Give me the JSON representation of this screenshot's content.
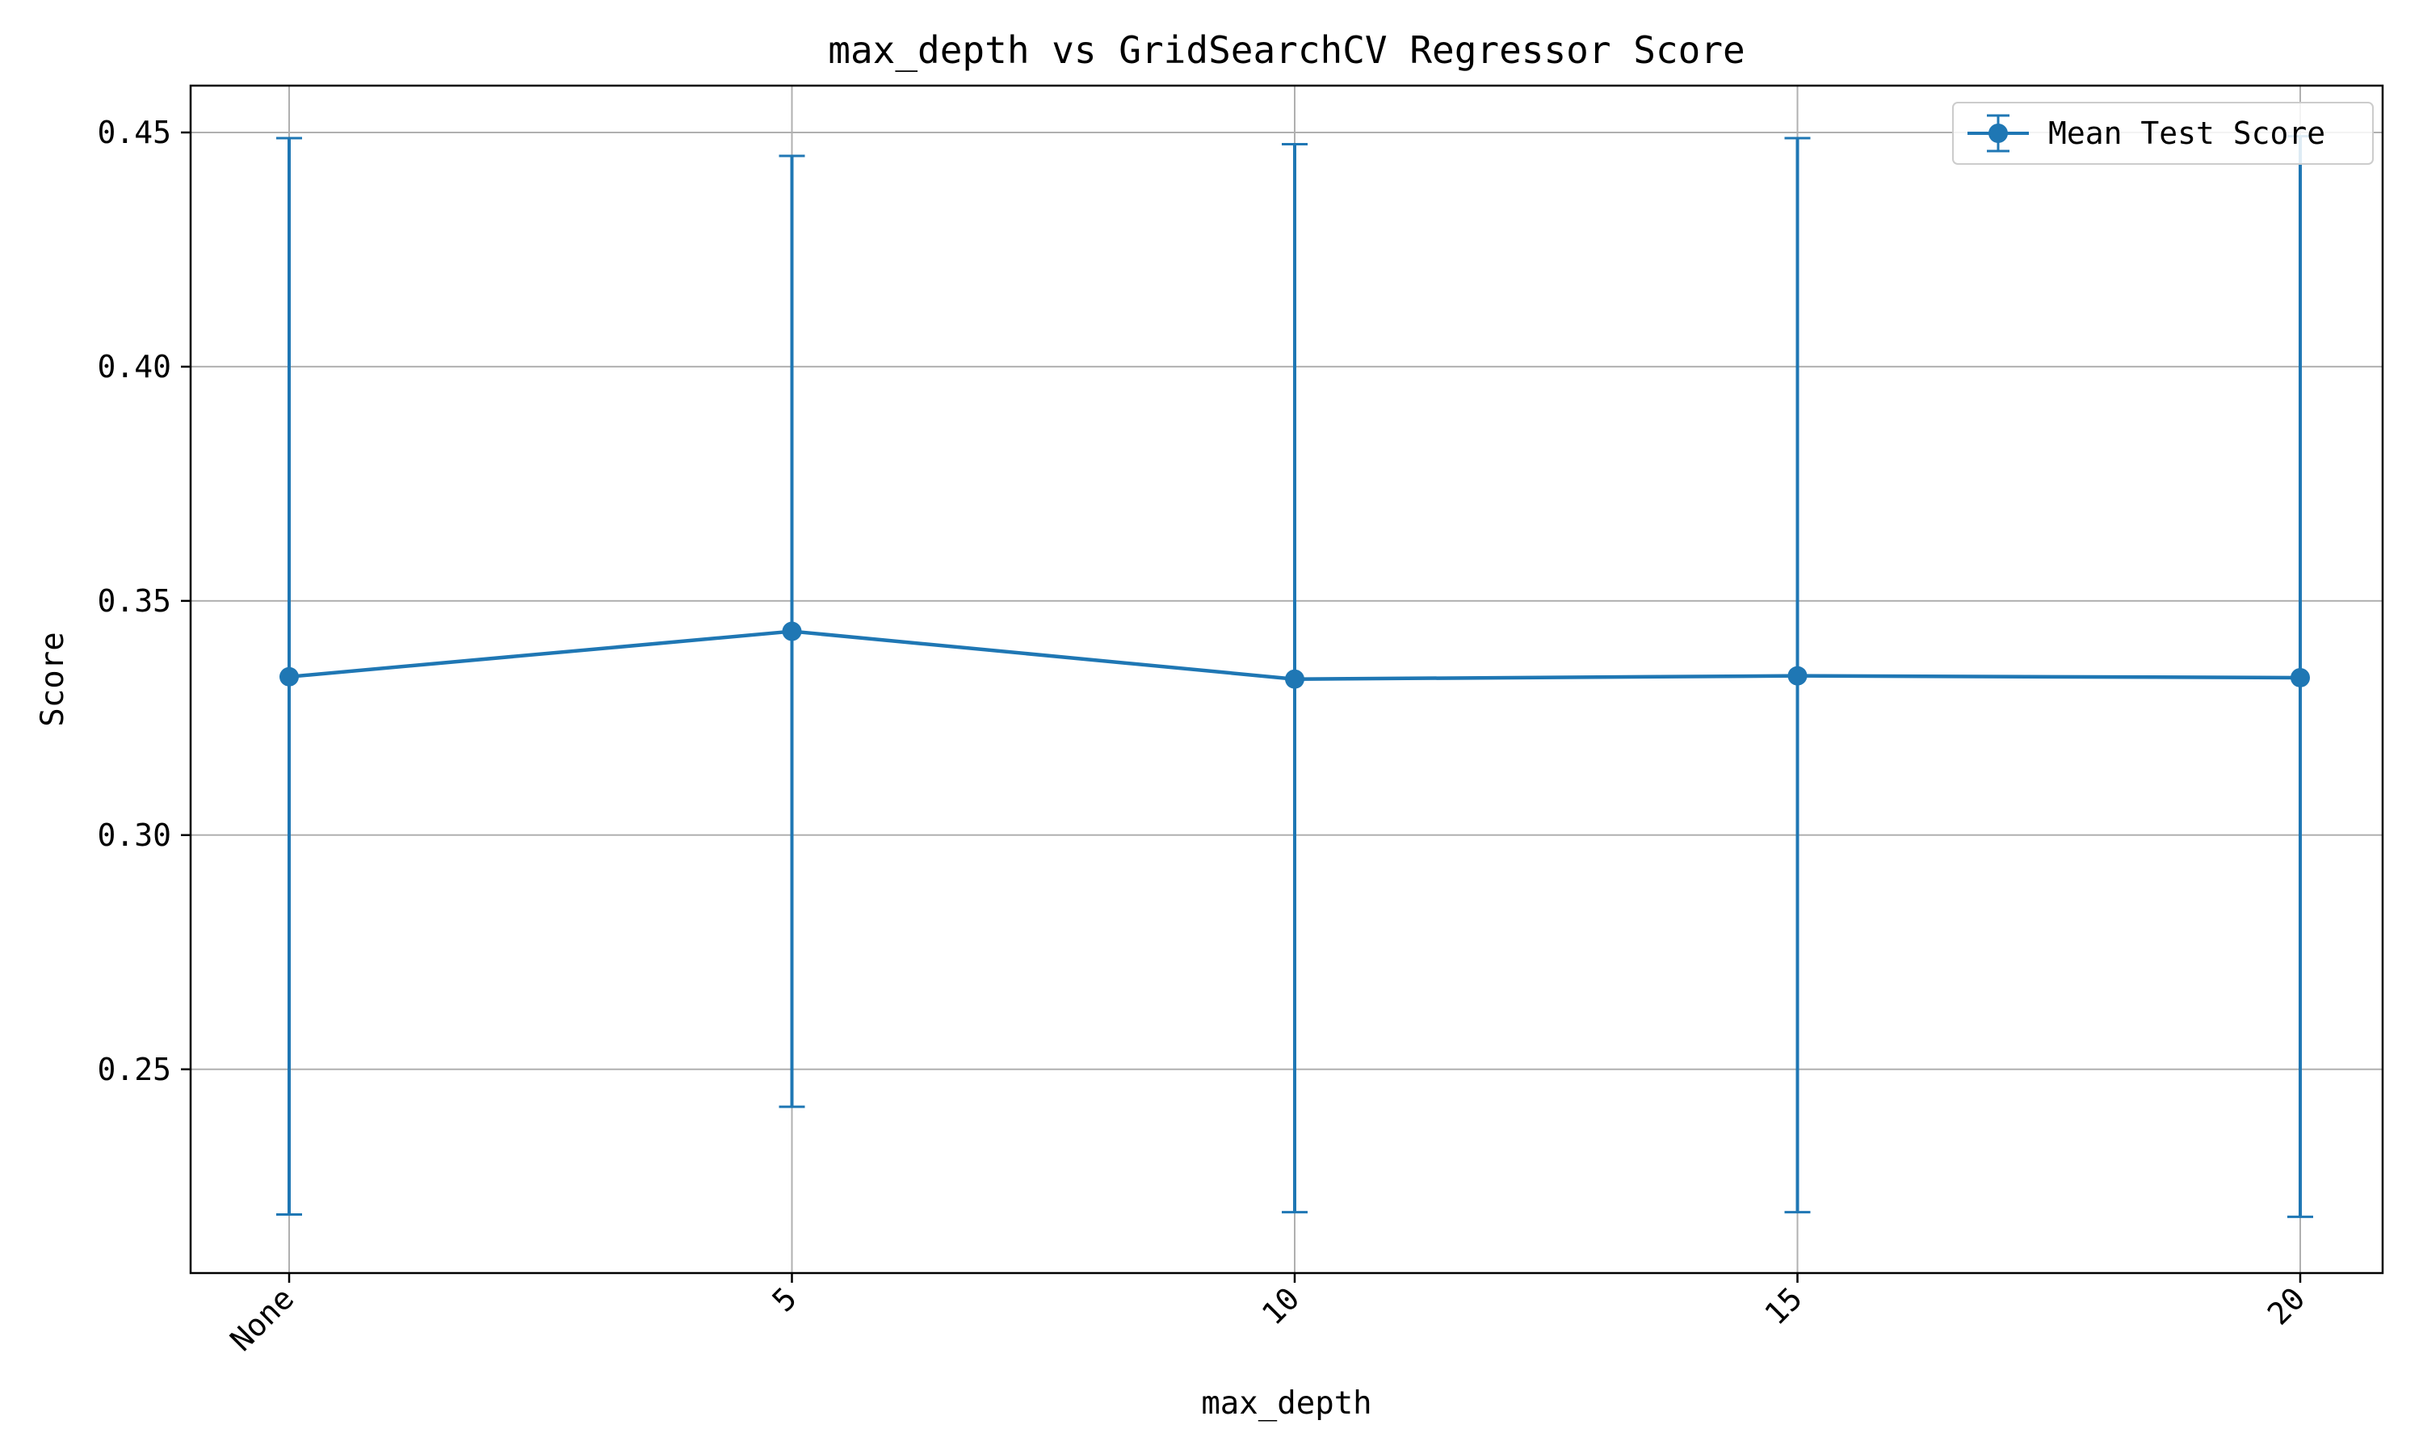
{
  "chart_data": {
    "type": "line",
    "title": "max_depth vs GridSearchCV Regressor Score",
    "xlabel": "max_depth",
    "ylabel": "Score",
    "categories": [
      "None",
      "5",
      "10",
      "15",
      "20"
    ],
    "ylim": [
      0.2065,
      0.46
    ],
    "yticks": [
      0.25,
      0.3,
      0.35,
      0.4,
      0.45
    ],
    "ytick_labels": [
      "0.25",
      "0.30",
      "0.35",
      "0.40",
      "0.45"
    ],
    "grid": true,
    "legend_position": "top-right",
    "series": [
      {
        "name": "Mean Test Score",
        "color": "#1f77b4",
        "marker": "circle",
        "error_bars": true,
        "values": [
          0.3338,
          0.3435,
          0.3333,
          0.334,
          0.3336
        ],
        "lower": [
          0.219,
          0.242,
          0.2195,
          0.2195,
          0.2185
        ],
        "upper": [
          0.4488,
          0.445,
          0.4475,
          0.4488,
          0.4492
        ]
      }
    ]
  }
}
